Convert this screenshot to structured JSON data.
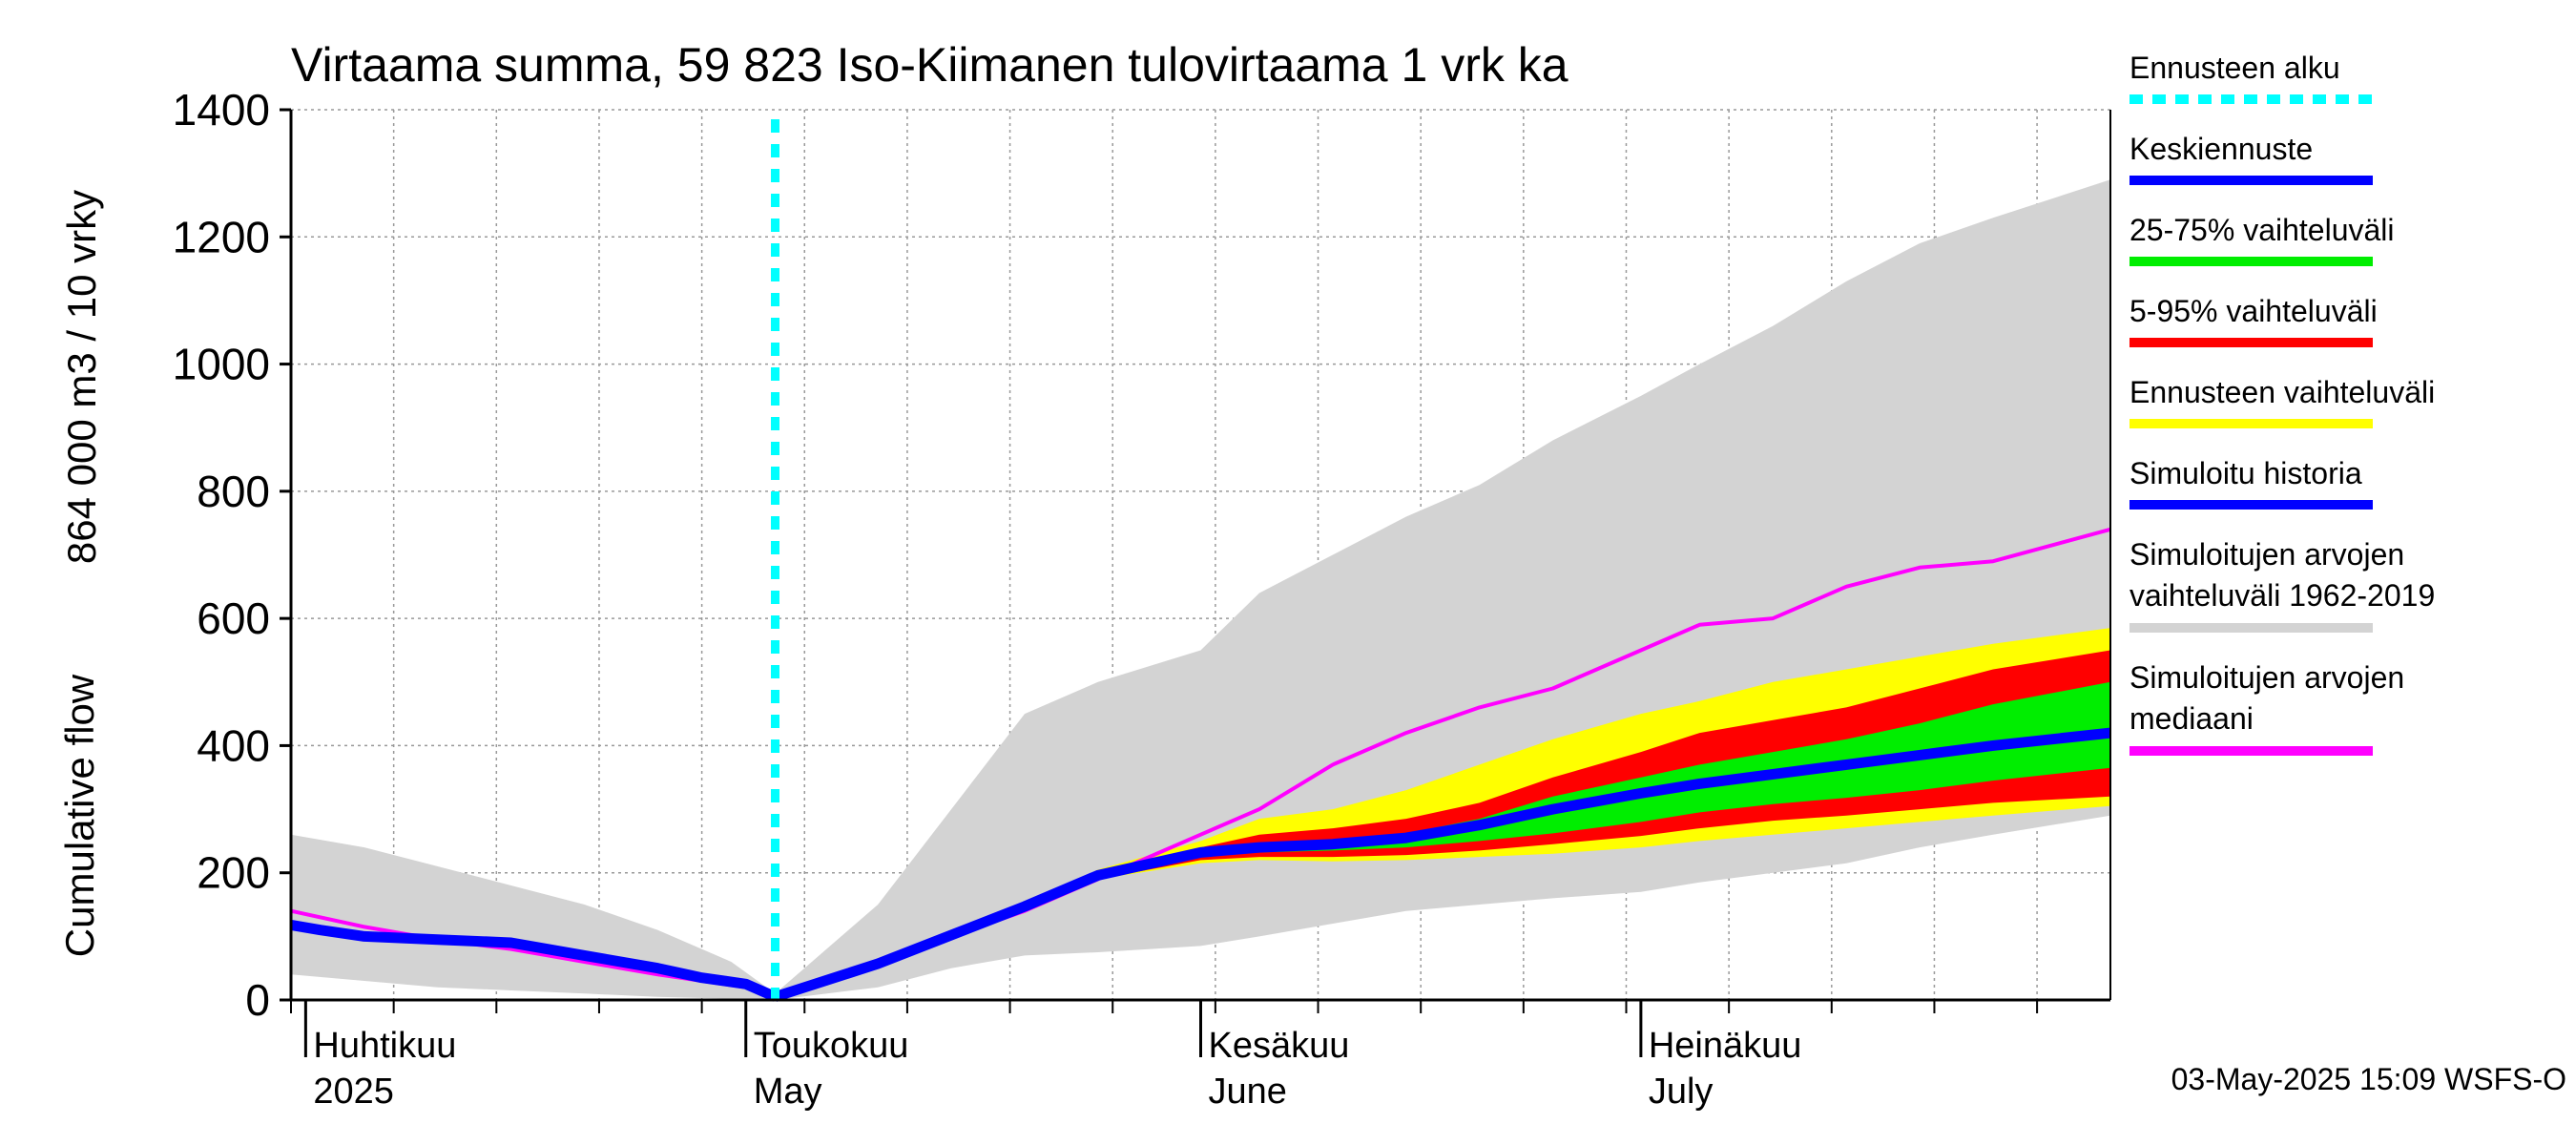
{
  "chart_data": {
    "type": "area",
    "title": "Virtaama summa, 59 823 Iso-Kiimanen tulovirtaama 1 vrk ka",
    "ylabel_primary": "Cumulative flow",
    "ylabel_secondary": "864 000 m3 / 10 vrky",
    "ylim": [
      0,
      1400
    ],
    "yticks": [
      0,
      200,
      400,
      600,
      800,
      1000,
      1200,
      1400
    ],
    "x_range": [
      "2025-03-31",
      "2025-08-02"
    ],
    "forecast_start": "2025-05-03",
    "grid": true,
    "legend_position": "right",
    "month_labels": [
      {
        "fi": "Huhtikuu",
        "en": "2025",
        "date": "2025-04-01"
      },
      {
        "fi": "Toukokuu",
        "en": "May",
        "date": "2025-05-01"
      },
      {
        "fi": "Kesäkuu",
        "en": "June",
        "date": "2025-06-01"
      },
      {
        "fi": "Heinäkuu",
        "en": "July",
        "date": "2025-07-01"
      }
    ],
    "historical_range": {
      "name": "Simuloitujen arvojen vaihteluväli 1962-2019",
      "color": "#d3d3d3",
      "x": [
        "2025-03-31",
        "2025-04-05",
        "2025-04-10",
        "2025-04-15",
        "2025-04-20",
        "2025-04-25",
        "2025-04-30",
        "2025-05-03",
        "2025-05-10",
        "2025-05-15",
        "2025-05-20",
        "2025-05-25",
        "2025-06-01",
        "2025-06-05",
        "2025-06-10",
        "2025-06-15",
        "2025-06-20",
        "2025-06-25",
        "2025-07-01",
        "2025-07-05",
        "2025-07-10",
        "2025-07-15",
        "2025-07-20",
        "2025-07-25",
        "2025-08-02"
      ],
      "lower": [
        40,
        30,
        20,
        15,
        10,
        5,
        2,
        0,
        20,
        50,
        70,
        75,
        85,
        100,
        120,
        140,
        150,
        160,
        170,
        185,
        200,
        215,
        240,
        260,
        290
      ],
      "upper": [
        260,
        240,
        210,
        180,
        150,
        110,
        60,
        10,
        150,
        300,
        450,
        500,
        550,
        640,
        700,
        760,
        810,
        880,
        950,
        1000,
        1060,
        1130,
        1190,
        1230,
        1290
      ]
    },
    "forecast_5_95": {
      "name": "Ennusteen vaihteluväli",
      "color": "#ffff00",
      "x": [
        "2025-05-03",
        "2025-05-10",
        "2025-05-15",
        "2025-05-20",
        "2025-05-25",
        "2025-06-01",
        "2025-06-05",
        "2025-06-10",
        "2025-06-15",
        "2025-06-20",
        "2025-06-25",
        "2025-07-01",
        "2025-07-05",
        "2025-07-10",
        "2025-07-15",
        "2025-07-20",
        "2025-07-25",
        "2025-08-02"
      ],
      "lower": [
        0,
        55,
        100,
        145,
        190,
        215,
        220,
        218,
        220,
        225,
        230,
        240,
        250,
        260,
        270,
        280,
        290,
        305
      ],
      "upper": [
        0,
        60,
        105,
        150,
        205,
        250,
        285,
        300,
        330,
        370,
        410,
        450,
        470,
        500,
        520,
        540,
        560,
        585
      ]
    },
    "forecast_range_red": {
      "name": "5-95% vaihteluväli",
      "color": "#ff0000",
      "x": [
        "2025-05-03",
        "2025-05-10",
        "2025-05-15",
        "2025-05-20",
        "2025-05-25",
        "2025-06-01",
        "2025-06-05",
        "2025-06-10",
        "2025-06-15",
        "2025-06-20",
        "2025-06-25",
        "2025-07-01",
        "2025-07-05",
        "2025-07-10",
        "2025-07-15",
        "2025-07-20",
        "2025-07-25",
        "2025-08-02"
      ],
      "lower": [
        0,
        55,
        100,
        145,
        190,
        220,
        225,
        225,
        228,
        235,
        245,
        258,
        270,
        282,
        290,
        300,
        310,
        320
      ],
      "upper": [
        0,
        58,
        103,
        148,
        200,
        240,
        260,
        270,
        285,
        310,
        350,
        390,
        420,
        440,
        460,
        490,
        520,
        550
      ]
    },
    "forecast_25_75": {
      "name": "25-75% vaihteluväli",
      "color": "#00ee00",
      "x": [
        "2025-05-03",
        "2025-05-10",
        "2025-05-15",
        "2025-05-20",
        "2025-05-25",
        "2025-06-01",
        "2025-06-05",
        "2025-06-10",
        "2025-06-15",
        "2025-06-20",
        "2025-06-25",
        "2025-07-01",
        "2025-07-05",
        "2025-07-10",
        "2025-07-15",
        "2025-07-20",
        "2025-07-25",
        "2025-08-02"
      ],
      "lower": [
        0,
        57,
        102,
        147,
        195,
        228,
        232,
        235,
        240,
        250,
        262,
        280,
        295,
        308,
        318,
        330,
        345,
        365
      ],
      "upper": [
        0,
        58,
        103,
        148,
        198,
        235,
        245,
        250,
        262,
        285,
        320,
        350,
        370,
        390,
        410,
        435,
        465,
        500
      ]
    },
    "series": [
      {
        "name": "Simuloitu historia",
        "color": "#0000ff",
        "x": [
          "2025-03-31",
          "2025-04-02",
          "2025-04-05",
          "2025-04-10",
          "2025-04-15",
          "2025-04-20",
          "2025-04-25",
          "2025-04-28",
          "2025-05-01",
          "2025-05-03"
        ],
        "values": [
          118,
          110,
          100,
          95,
          90,
          70,
          50,
          35,
          25,
          5
        ]
      },
      {
        "name": "Keskiennuste",
        "color": "#0000ff",
        "x": [
          "2025-05-03",
          "2025-05-10",
          "2025-05-15",
          "2025-05-20",
          "2025-05-25",
          "2025-06-01",
          "2025-06-05",
          "2025-06-10",
          "2025-06-15",
          "2025-06-20",
          "2025-06-25",
          "2025-07-01",
          "2025-07-05",
          "2025-07-10",
          "2025-07-15",
          "2025-07-20",
          "2025-07-25",
          "2025-08-02"
        ],
        "values": [
          5,
          57,
          102,
          147,
          196,
          232,
          240,
          245,
          255,
          275,
          300,
          325,
          340,
          355,
          370,
          385,
          400,
          420
        ]
      },
      {
        "name": "Simuloitujen arvojen mediaani",
        "color": "#ff00ff",
        "x": [
          "2025-03-31",
          "2025-04-05",
          "2025-04-10",
          "2025-04-15",
          "2025-04-20",
          "2025-04-25",
          "2025-05-01",
          "2025-05-03",
          "2025-05-10",
          "2025-05-15",
          "2025-05-20",
          "2025-05-25",
          "2025-06-01",
          "2025-06-05",
          "2025-06-10",
          "2025-06-15",
          "2025-06-20",
          "2025-06-25",
          "2025-07-01",
          "2025-07-05",
          "2025-07-10",
          "2025-07-15",
          "2025-07-20",
          "2025-07-25",
          "2025-08-02"
        ],
        "values": [
          140,
          115,
          95,
          80,
          60,
          40,
          20,
          5,
          55,
          100,
          140,
          190,
          260,
          300,
          370,
          420,
          460,
          490,
          550,
          590,
          600,
          650,
          680,
          690,
          740
        ]
      }
    ]
  },
  "legend": {
    "items": [
      {
        "label": "Ennusteen alku",
        "color": "#00ffff",
        "style": "dashed"
      },
      {
        "label": "Keskiennuste",
        "color": "#0000ff",
        "style": "solid"
      },
      {
        "label": "25-75% vaihteluväli",
        "color": "#00ee00",
        "style": "solid"
      },
      {
        "label": "5-95% vaihteluväli",
        "color": "#ff0000",
        "style": "solid"
      },
      {
        "label": "Ennusteen vaihteluväli",
        "color": "#ffff00",
        "style": "solid"
      },
      {
        "label": "Simuloitu historia",
        "color": "#0000ff",
        "style": "solid"
      },
      {
        "label": "Simuloitujen arvojen",
        "label2": "vaihteluväli 1962-2019",
        "color": "#d3d3d3",
        "style": "solid"
      },
      {
        "label": "Simuloitujen arvojen",
        "label2": "mediaani",
        "color": "#ff00ff",
        "style": "solid"
      }
    ]
  },
  "footer": {
    "timestamp": "03-May-2025 15:09 WSFS-O"
  }
}
